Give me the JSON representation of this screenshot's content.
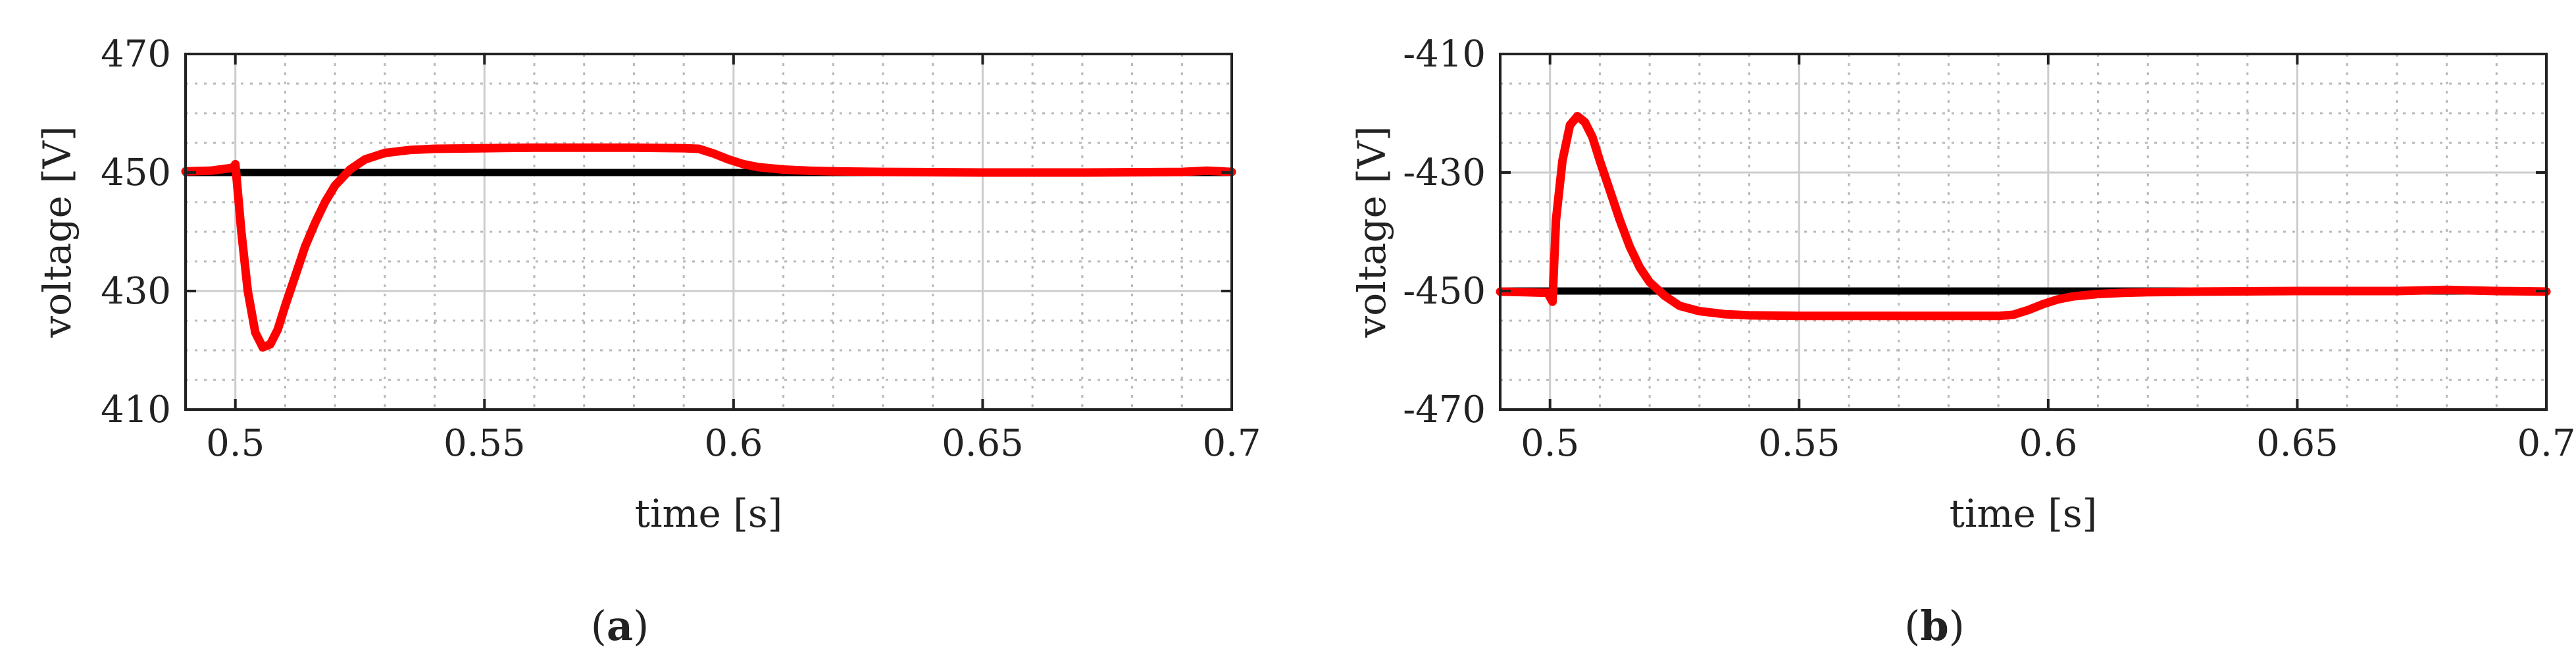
{
  "colors": {
    "measured": "#ff0000",
    "reference": "#000000",
    "major_grid": "#cccccc",
    "minor_grid": "#b8b8b8",
    "frame": "#222222"
  },
  "chart_data": [
    {
      "type": "line",
      "panel_label": "a",
      "xlabel": "time [s]",
      "ylabel": "voltage [V]",
      "xlim": [
        0.49,
        0.7
      ],
      "ylim": [
        410,
        470
      ],
      "xticks": [
        0.5,
        0.55,
        0.6,
        0.65,
        0.7
      ],
      "xtick_labels": [
        "0.5",
        "0.55",
        "0.6",
        "0.65",
        "0.7"
      ],
      "yticks": [
        410,
        430,
        450,
        470
      ],
      "ytick_labels": [
        "410",
        "430",
        "450",
        "470"
      ],
      "grid": true,
      "minor_grid": true,
      "series": [
        {
          "color": "#000000",
          "x": [
            0.49,
            0.7
          ],
          "y": [
            450,
            450
          ]
        },
        {
          "color": "#ff0000",
          "x": [
            0.49,
            0.495,
            0.4995,
            0.5,
            0.5012,
            0.5025,
            0.504,
            0.5055,
            0.507,
            0.5085,
            0.51,
            0.512,
            0.514,
            0.516,
            0.518,
            0.52,
            0.523,
            0.526,
            0.53,
            0.535,
            0.54,
            0.55,
            0.56,
            0.57,
            0.58,
            0.59,
            0.593,
            0.596,
            0.599,
            0.602,
            0.605,
            0.61,
            0.615,
            0.62,
            0.63,
            0.65,
            0.67,
            0.69,
            0.695,
            0.7
          ],
          "y": [
            450.2,
            450.3,
            450.8,
            451.4,
            440,
            430,
            423,
            420.5,
            421,
            423.5,
            427.5,
            432.5,
            437.5,
            441.5,
            445,
            447.8,
            450.5,
            452.2,
            453.3,
            453.8,
            454,
            454.1,
            454.2,
            454.2,
            454.2,
            454.1,
            454,
            453.2,
            452.2,
            451.4,
            450.9,
            450.5,
            450.3,
            450.2,
            450.1,
            450,
            450,
            450.1,
            450.3,
            450.1
          ]
        }
      ]
    },
    {
      "type": "line",
      "panel_label": "b",
      "xlabel": "time [s]",
      "ylabel": "voltage [V]",
      "xlim": [
        0.49,
        0.7
      ],
      "ylim": [
        -470,
        -410
      ],
      "xticks": [
        0.5,
        0.55,
        0.6,
        0.65,
        0.7
      ],
      "xtick_labels": [
        "0.5",
        "0.55",
        "0.6",
        "0.65",
        "0.7"
      ],
      "yticks": [
        -470,
        -450,
        -430,
        -410
      ],
      "ytick_labels": [
        "-470",
        "-450",
        "-430",
        "-410"
      ],
      "grid": true,
      "minor_grid": true,
      "series": [
        {
          "color": "#000000",
          "x": [
            0.49,
            0.7
          ],
          "y": [
            -450,
            -450
          ]
        },
        {
          "color": "#ff0000",
          "x": [
            0.49,
            0.495,
            0.4995,
            0.5005,
            0.5012,
            0.5025,
            0.504,
            0.5055,
            0.507,
            0.5085,
            0.51,
            0.512,
            0.514,
            0.516,
            0.518,
            0.52,
            0.523,
            0.526,
            0.53,
            0.535,
            0.54,
            0.55,
            0.56,
            0.57,
            0.58,
            0.59,
            0.593,
            0.596,
            0.599,
            0.602,
            0.605,
            0.61,
            0.615,
            0.62,
            0.63,
            0.65,
            0.67,
            0.68,
            0.69,
            0.7
          ],
          "y": [
            -450.1,
            -450.2,
            -450.3,
            -451.8,
            -438,
            -428,
            -422,
            -420.5,
            -421.5,
            -424,
            -428,
            -433,
            -438,
            -442.5,
            -446,
            -448.5,
            -450.8,
            -452.5,
            -453.4,
            -453.9,
            -454.1,
            -454.2,
            -454.2,
            -454.2,
            -454.2,
            -454.2,
            -454,
            -453.2,
            -452.2,
            -451.4,
            -450.9,
            -450.5,
            -450.3,
            -450.2,
            -450.1,
            -450,
            -450,
            -449.8,
            -450,
            -450.1
          ]
        }
      ]
    }
  ]
}
